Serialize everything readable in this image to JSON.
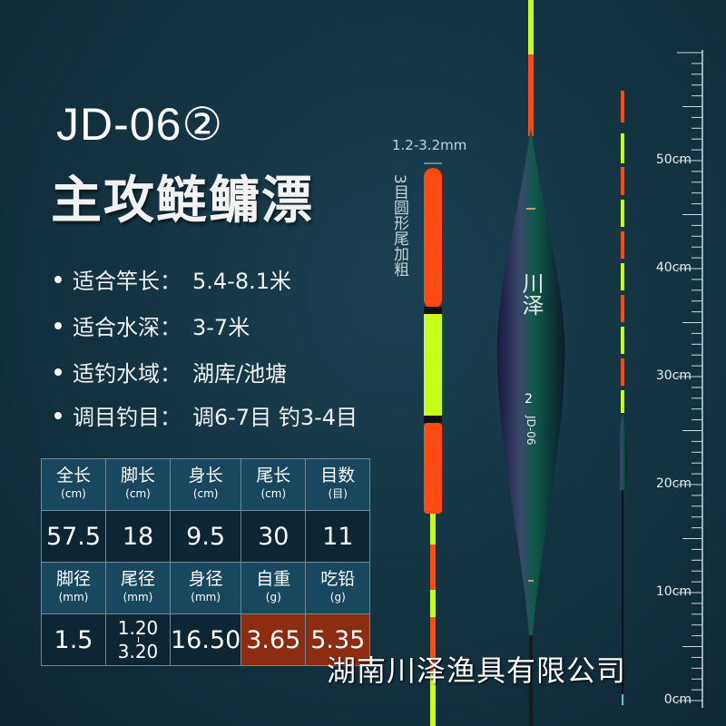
{
  "header": {
    "model": "JD-06②",
    "title": "主攻鲢鳙漂"
  },
  "specs": [
    {
      "label": "适合竿长：",
      "value": "5.4-8.1米"
    },
    {
      "label": "适合水深：",
      "value": "3-7米"
    },
    {
      "label": "适钓水域：",
      "value": "湖库/池塘"
    },
    {
      "label": "调目钓目：",
      "value": "调6-7目 钓3-4目"
    }
  ],
  "table": {
    "row1_headers": [
      {
        "name": "全长",
        "unit": "(cm)"
      },
      {
        "name": "脚长",
        "unit": "(cm)"
      },
      {
        "name": "身长",
        "unit": "(cm)"
      },
      {
        "name": "尾长",
        "unit": "(cm)"
      },
      {
        "name": "目数",
        "unit": "(目)"
      }
    ],
    "row1_values": [
      "57.5",
      "18",
      "9.5",
      "30",
      "11"
    ],
    "row2_headers": [
      {
        "name": "脚径",
        "unit": "(mm)"
      },
      {
        "name": "尾径",
        "unit": "(mm)"
      },
      {
        "name": "身径",
        "unit": "(mm)"
      },
      {
        "name": "自重",
        "unit": "(g)"
      },
      {
        "name": "吃铅",
        "unit": "(g)"
      }
    ],
    "row2_values": [
      "1.5",
      {
        "top": "1.20",
        "bottom": "3.20"
      },
      "16.50",
      "3.65",
      "5.35"
    ],
    "highlight_color": "#8c2c10"
  },
  "tail": {
    "diameter": "1.2-3.2mm",
    "note": "3目圆形尾加粗"
  },
  "float_body": {
    "brand": "川泽",
    "number": "2",
    "model": "JD-06"
  },
  "ruler": {
    "labels": [
      "50cm",
      "40cm",
      "30cm",
      "20cm",
      "10cm",
      "0cm"
    ]
  },
  "company": "湖南川泽渔具有限公司",
  "colors": {
    "orange": "#ff4a12",
    "green": "#c8ff1a",
    "background": "#143442"
  }
}
